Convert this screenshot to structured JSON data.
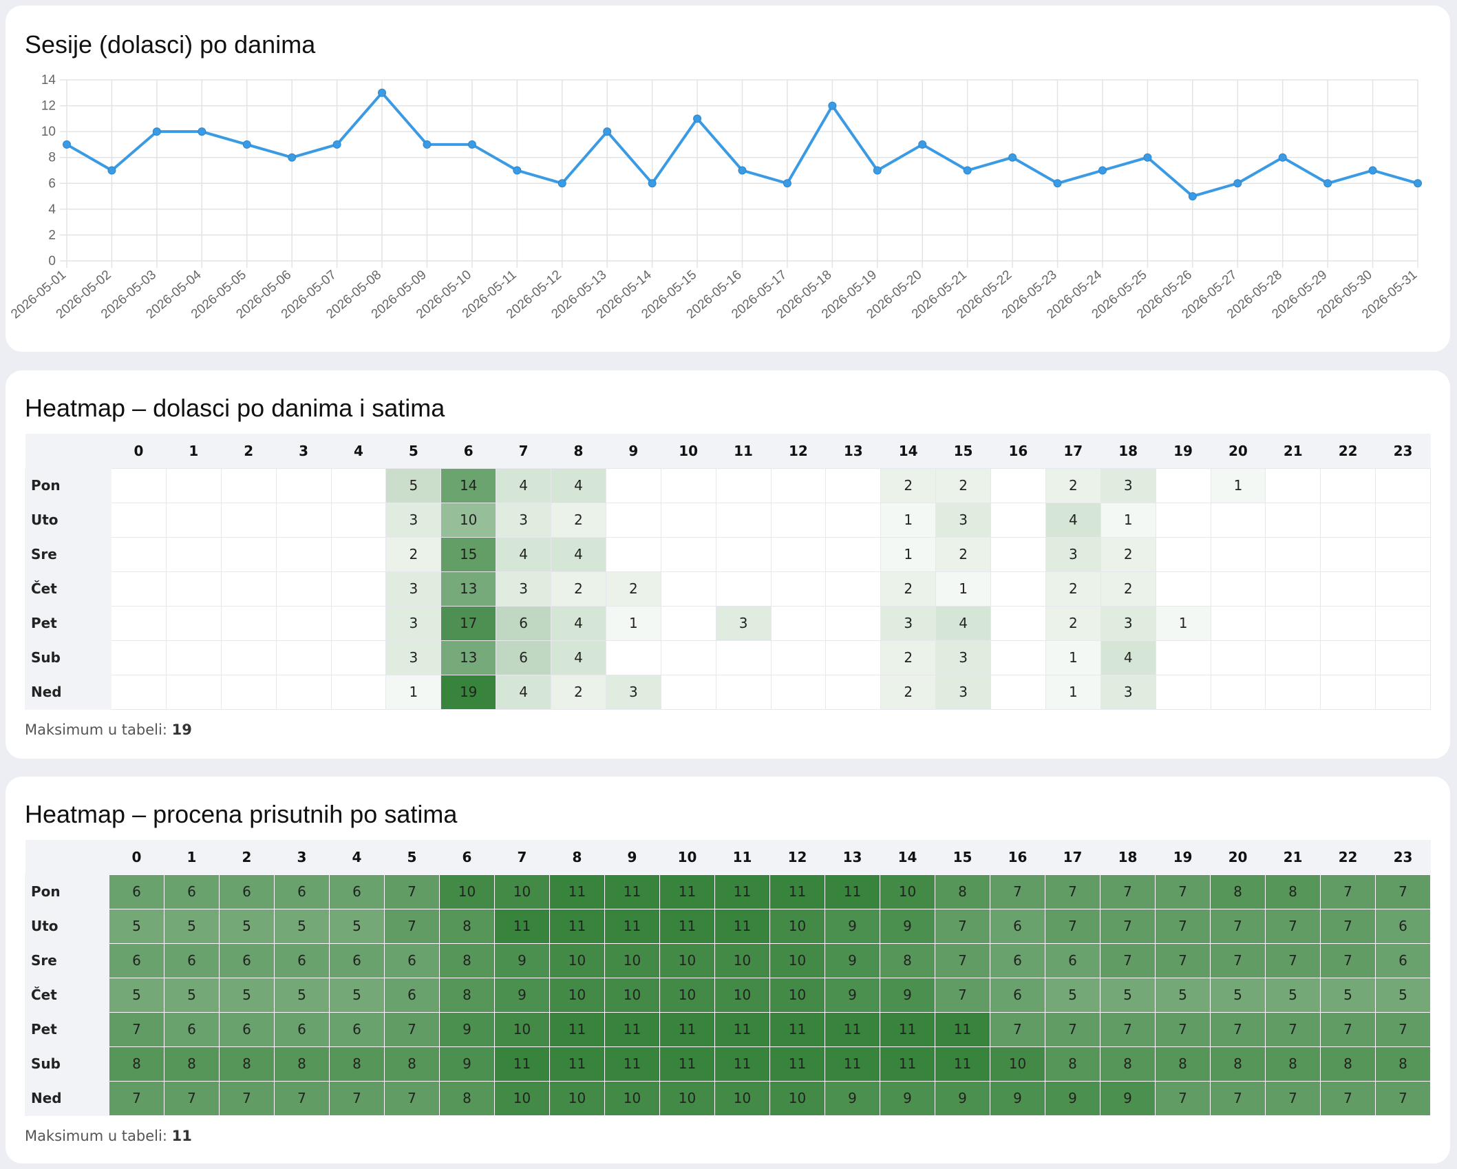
{
  "chart_card": {
    "title": "Sesije (dolasci) po danima"
  },
  "chart_data": {
    "type": "line",
    "title": "Sesije (dolasci) po danima",
    "xlabel": "",
    "ylabel": "",
    "x": [
      "2026-05-01",
      "2026-05-02",
      "2026-05-03",
      "2026-05-04",
      "2026-05-05",
      "2026-05-06",
      "2026-05-07",
      "2026-05-08",
      "2026-05-09",
      "2026-05-10",
      "2026-05-11",
      "2026-05-12",
      "2026-05-13",
      "2026-05-14",
      "2026-05-15",
      "2026-05-16",
      "2026-05-17",
      "2026-05-18",
      "2026-05-19",
      "2026-05-20",
      "2026-05-21",
      "2026-05-22",
      "2026-05-23",
      "2026-05-24",
      "2026-05-25",
      "2026-05-26",
      "2026-05-27",
      "2026-05-28",
      "2026-05-29",
      "2026-05-30",
      "2026-05-31"
    ],
    "series": [
      {
        "values": [
          9,
          7,
          10,
          10,
          9,
          8,
          9,
          13,
          9,
          9,
          7,
          6,
          10,
          6,
          11,
          7,
          6,
          12,
          7,
          9,
          7,
          8,
          6,
          7,
          8,
          5,
          6,
          8,
          6,
          7,
          6
        ]
      }
    ],
    "yticks": [
      "0",
      "2",
      "4",
      "6",
      "8",
      "10",
      "12",
      "14"
    ],
    "ylim": [
      0,
      14
    ],
    "grid": true,
    "line_color": "#3a9ae3"
  },
  "heatmap_arrivals": {
    "title": "Heatmap – dolasci po danima i satima",
    "hours": [
      "0",
      "1",
      "2",
      "3",
      "4",
      "5",
      "6",
      "7",
      "8",
      "9",
      "10",
      "11",
      "12",
      "13",
      "14",
      "15",
      "16",
      "17",
      "18",
      "19",
      "20",
      "21",
      "22",
      "23"
    ],
    "rows": [
      {
        "day": "Pon",
        "values": [
          "",
          "",
          "",
          "",
          "",
          "5",
          "14",
          "4",
          "4",
          "",
          "",
          "",
          "",
          "",
          "2",
          "2",
          "",
          "2",
          "3",
          "",
          "1",
          "",
          "",
          ""
        ]
      },
      {
        "day": "Uto",
        "values": [
          "",
          "",
          "",
          "",
          "",
          "3",
          "10",
          "3",
          "2",
          "",
          "",
          "",
          "",
          "",
          "1",
          "3",
          "",
          "4",
          "1",
          "",
          "",
          "",
          "",
          ""
        ]
      },
      {
        "day": "Sre",
        "values": [
          "",
          "",
          "",
          "",
          "",
          "2",
          "15",
          "4",
          "4",
          "",
          "",
          "",
          "",
          "",
          "1",
          "2",
          "",
          "3",
          "2",
          "",
          "",
          "",
          "",
          ""
        ]
      },
      {
        "day": "Čet",
        "values": [
          "",
          "",
          "",
          "",
          "",
          "3",
          "13",
          "3",
          "2",
          "2",
          "",
          "",
          "",
          "",
          "2",
          "1",
          "",
          "2",
          "2",
          "",
          "",
          "",
          "",
          ""
        ]
      },
      {
        "day": "Pet",
        "values": [
          "",
          "",
          "",
          "",
          "",
          "3",
          "17",
          "6",
          "4",
          "1",
          "",
          "3",
          "",
          "",
          "3",
          "4",
          "",
          "2",
          "3",
          "1",
          "",
          "",
          "",
          ""
        ]
      },
      {
        "day": "Sub",
        "values": [
          "",
          "",
          "",
          "",
          "",
          "3",
          "13",
          "6",
          "4",
          "",
          "",
          "",
          "",
          "",
          "2",
          "3",
          "",
          "1",
          "4",
          "",
          "",
          "",
          "",
          ""
        ]
      },
      {
        "day": "Ned",
        "values": [
          "",
          "",
          "",
          "",
          "",
          "1",
          "19",
          "4",
          "2",
          "3",
          "",
          "",
          "",
          "",
          "2",
          "3",
          "",
          "1",
          "3",
          "",
          "",
          "",
          "",
          ""
        ]
      }
    ],
    "max_label": "Maksimum u tabeli:",
    "max_value": "19"
  },
  "heatmap_presence": {
    "title": "Heatmap – procena prisutnih po satima",
    "hours": [
      "0",
      "1",
      "2",
      "3",
      "4",
      "5",
      "6",
      "7",
      "8",
      "9",
      "10",
      "11",
      "12",
      "13",
      "14",
      "15",
      "16",
      "17",
      "18",
      "19",
      "20",
      "21",
      "22",
      "23"
    ],
    "rows": [
      {
        "day": "Pon",
        "values": [
          "6",
          "6",
          "6",
          "6",
          "6",
          "7",
          "10",
          "10",
          "11",
          "11",
          "11",
          "11",
          "11",
          "11",
          "10",
          "8",
          "7",
          "7",
          "7",
          "7",
          "8",
          "8",
          "7",
          "7"
        ]
      },
      {
        "day": "Uto",
        "values": [
          "5",
          "5",
          "5",
          "5",
          "5",
          "7",
          "8",
          "11",
          "11",
          "11",
          "11",
          "11",
          "10",
          "9",
          "9",
          "7",
          "6",
          "7",
          "7",
          "7",
          "7",
          "7",
          "7",
          "6"
        ]
      },
      {
        "day": "Sre",
        "values": [
          "6",
          "6",
          "6",
          "6",
          "6",
          "6",
          "8",
          "9",
          "10",
          "10",
          "10",
          "10",
          "10",
          "9",
          "8",
          "7",
          "6",
          "6",
          "7",
          "7",
          "7",
          "7",
          "7",
          "6"
        ]
      },
      {
        "day": "Čet",
        "values": [
          "5",
          "5",
          "5",
          "5",
          "5",
          "6",
          "8",
          "9",
          "10",
          "10",
          "10",
          "10",
          "10",
          "9",
          "9",
          "7",
          "6",
          "5",
          "5",
          "5",
          "5",
          "5",
          "5",
          "5"
        ]
      },
      {
        "day": "Pet",
        "values": [
          "7",
          "6",
          "6",
          "6",
          "6",
          "7",
          "9",
          "10",
          "11",
          "11",
          "11",
          "11",
          "11",
          "11",
          "11",
          "11",
          "7",
          "7",
          "7",
          "7",
          "7",
          "7",
          "7",
          "7"
        ]
      },
      {
        "day": "Sub",
        "values": [
          "8",
          "8",
          "8",
          "8",
          "8",
          "8",
          "9",
          "11",
          "11",
          "11",
          "11",
          "11",
          "11",
          "11",
          "11",
          "11",
          "10",
          "8",
          "8",
          "8",
          "8",
          "8",
          "8",
          "8"
        ]
      },
      {
        "day": "Ned",
        "values": [
          "7",
          "7",
          "7",
          "7",
          "7",
          "7",
          "8",
          "10",
          "10",
          "10",
          "10",
          "10",
          "10",
          "9",
          "9",
          "9",
          "9",
          "9",
          "9",
          "7",
          "7",
          "7",
          "7",
          "7"
        ]
      }
    ],
    "max_label": "Maksimum u tabeli:",
    "max_value": "11"
  }
}
